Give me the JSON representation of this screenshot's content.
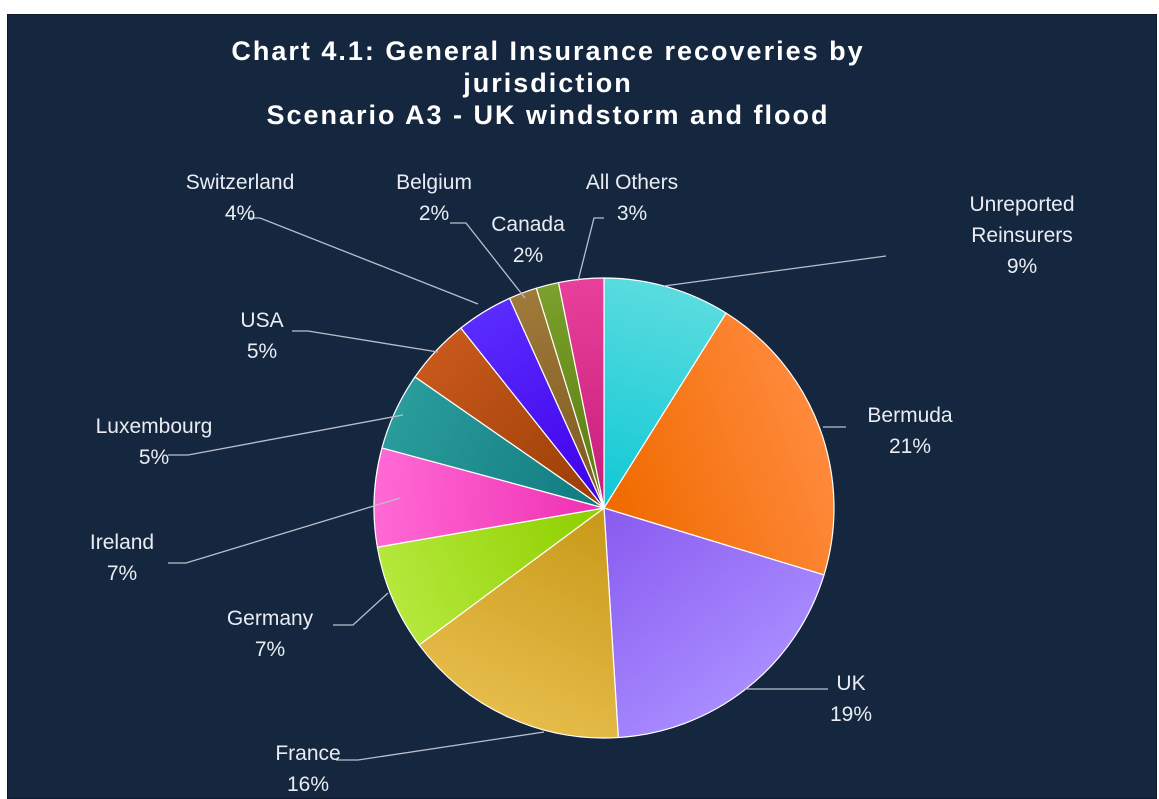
{
  "chart_data": {
    "type": "pie",
    "title_lines": [
      "Chart 4.1: General Insurance recoveries by",
      "jurisdiction",
      "Scenario A3 - UK windstorm and flood"
    ],
    "start_angle_deg": 0,
    "direction": "clockwise",
    "slices": [
      {
        "name": "Unreported Reinsurers",
        "label_lines": [
          "Unreported",
          "Reinsurers",
          "9%"
        ],
        "value": 9.0,
        "color_light": "#5adcdf",
        "color_dark": "#12c9d6"
      },
      {
        "name": "Bermuda",
        "label_lines": [
          "Bermuda",
          "21%"
        ],
        "value": 21.0,
        "color_light": "#ff8a3c",
        "color_dark": "#f06b00"
      },
      {
        "name": "UK",
        "label_lines": [
          "UK",
          "19%"
        ],
        "value": 19.5,
        "color_light": "#a88cff",
        "color_dark": "#8a5cf0"
      },
      {
        "name": "France",
        "label_lines": [
          "France",
          "16%"
        ],
        "value": 16.0,
        "color_light": "#e6bc4a",
        "color_dark": "#c99a1a"
      },
      {
        "name": "Germany",
        "label_lines": [
          "Germany",
          "7%"
        ],
        "value": 7.5,
        "color_light": "#b5e83c",
        "color_dark": "#8fd000"
      },
      {
        "name": "Ireland",
        "label_lines": [
          "Ireland",
          "7%"
        ],
        "value": 7.0,
        "color_light": "#ff6ad5",
        "color_dark": "#f032b4"
      },
      {
        "name": "Luxembourg",
        "label_lines": [
          "Luxembourg",
          "5%"
        ],
        "value": 5.5,
        "color_light": "#2a9c9c",
        "color_dark": "#127c80"
      },
      {
        "name": "USA",
        "label_lines": [
          "USA",
          "5%"
        ],
        "value": 4.7,
        "color_light": "#c8581c",
        "color_dark": "#9a3e06"
      },
      {
        "name": "Switzerland",
        "label_lines": [
          "Switzerland",
          "4%"
        ],
        "value": 4.0,
        "color_light": "#5a2cff",
        "color_dark": "#3f00e8"
      },
      {
        "name": "Belgium",
        "label_lines": [
          "Belgium",
          "2%"
        ],
        "value": 2.0,
        "color_light": "#a07a3a",
        "color_dark": "#7e5a20"
      },
      {
        "name": "Canada",
        "label_lines": [
          "Canada",
          "2%"
        ],
        "value": 1.6,
        "color_light": "#7ca02c",
        "color_dark": "#5a7e10"
      },
      {
        "name": "All Others",
        "label_lines": [
          "All Others",
          "3%"
        ],
        "value": 3.2,
        "color_light": "#e8409a",
        "color_dark": "#c81e7c"
      }
    ]
  },
  "colors": {
    "background": "#15263f",
    "text": "#e9ecf2",
    "leader_line": "#b9bfca",
    "slice_edge": "#ffffff"
  }
}
